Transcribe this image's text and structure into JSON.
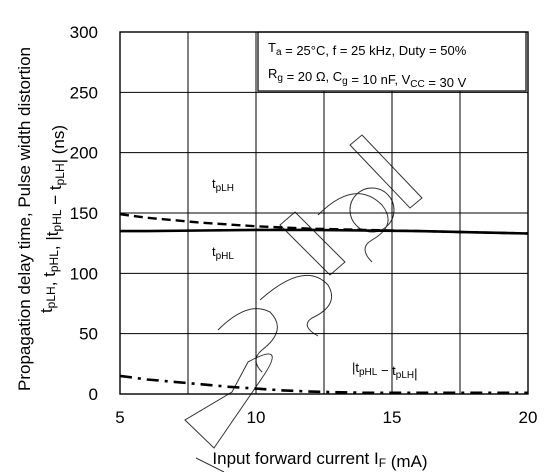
{
  "chart_data": {
    "type": "line",
    "x_range": [
      5,
      20
    ],
    "y_range": [
      0,
      300
    ],
    "x_ticks": [
      5,
      10,
      15,
      20
    ],
    "y_ticks": [
      0,
      50,
      100,
      150,
      200,
      250,
      300
    ],
    "grid": true,
    "x_axis_title": {
      "main": "Input forward current",
      "symbol": "I",
      "sub": "F",
      "unit": "(mA)"
    },
    "y_axis_title": {
      "line1": "Propagation delay time, Pulse width distortion",
      "line2_parts": [
        {
          "t": "t"
        },
        {
          "t": "pLH",
          "sub": true
        },
        {
          "t": ", t"
        },
        {
          "t": "pHL",
          "sub": true
        },
        {
          "t": ", |t"
        },
        {
          "t": "pHL",
          "sub": true
        },
        {
          "t": " − t"
        },
        {
          "t": "pLH",
          "sub": true
        },
        {
          "t": "|   (ns)"
        }
      ]
    },
    "conditions": {
      "line1_parts": [
        {
          "t": "T"
        },
        {
          "t": "a",
          "sub": true
        },
        {
          "t": " = 25°C, f = 25 kHz, Duty = 50%"
        }
      ],
      "line2_parts": [
        {
          "t": "R"
        },
        {
          "t": "g",
          "sub": true
        },
        {
          "t": " = 20 Ω, C"
        },
        {
          "t": "g",
          "sub": true
        },
        {
          "t": " = 10 nF, V"
        },
        {
          "t": "CC",
          "sub": true
        },
        {
          "t": " = 30 V"
        }
      ]
    },
    "series": [
      {
        "name": "tpLH",
        "label_parts": [
          {
            "t": "t"
          },
          {
            "t": "pLH",
            "sub": true
          }
        ],
        "style": "dashed",
        "x": [
          5,
          6,
          8,
          10,
          12,
          14,
          16,
          18,
          20
        ],
        "y": [
          149,
          146,
          142,
          139,
          137,
          136,
          135,
          134,
          133
        ]
      },
      {
        "name": "tpHL",
        "label_parts": [
          {
            "t": "t"
          },
          {
            "t": "pHL",
            "sub": true
          }
        ],
        "style": "solid",
        "x": [
          5,
          6,
          8,
          10,
          12,
          14,
          16,
          18,
          20
        ],
        "y": [
          135,
          135,
          135.5,
          136,
          136,
          135.5,
          135,
          134,
          133
        ]
      },
      {
        "name": "|tpHL − tpLH|",
        "label_parts": [
          {
            "t": "|t"
          },
          {
            "t": "pHL",
            "sub": true
          },
          {
            "t": "  −  t"
          },
          {
            "t": "pLH",
            "sub": true
          },
          {
            "t": "|"
          }
        ],
        "style": "dashdot",
        "x": [
          5,
          6,
          7,
          8,
          9,
          10,
          11,
          12,
          14,
          16,
          18,
          20
        ],
        "y": [
          15,
          12,
          10,
          8,
          6,
          4.5,
          3,
          2,
          1,
          1,
          1,
          1
        ]
      }
    ],
    "watermark": "Recycled"
  }
}
